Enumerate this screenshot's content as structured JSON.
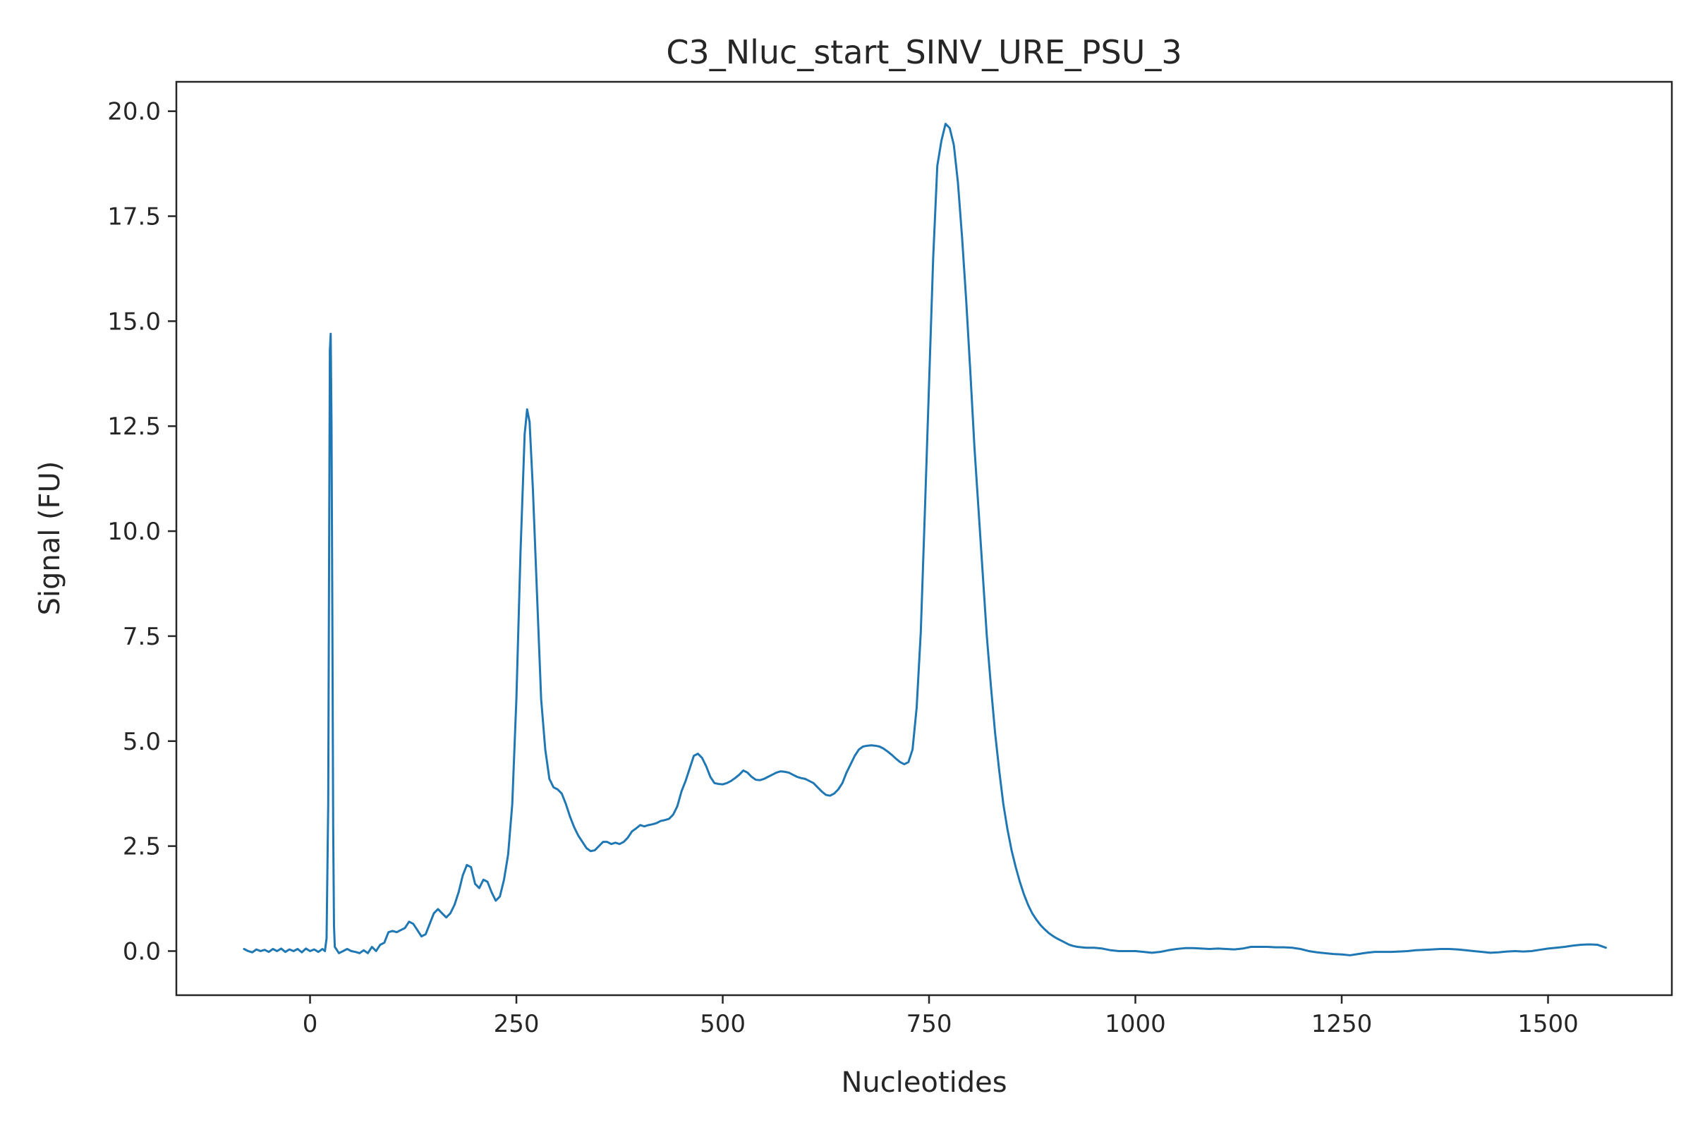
{
  "chart_data": {
    "type": "line",
    "title": "C3_Nluc_start_SINV_URE_PSU_3",
    "xlabel": "Nucleotides",
    "ylabel": "Signal (FU)",
    "xlim": [
      -162,
      1650
    ],
    "ylim": [
      -1.05,
      20.7
    ],
    "xticks": [
      0,
      250,
      500,
      750,
      1000,
      1250,
      1500
    ],
    "xtick_labels": [
      "0",
      "250",
      "500",
      "750",
      "1000",
      "1250",
      "1500"
    ],
    "yticks": [
      0,
      2.5,
      5,
      7.5,
      10,
      12.5,
      15,
      17.5,
      20
    ],
    "ytick_labels": [
      "0.0",
      "2.5",
      "5.0",
      "7.5",
      "10.0",
      "12.5",
      "15.0",
      "17.5",
      "20.0"
    ],
    "grid": false,
    "line_color": "#1f77b4",
    "series": [
      {
        "points": [
          [
            -80,
            0.05
          ],
          [
            -75,
            0.0
          ],
          [
            -70,
            -0.03
          ],
          [
            -65,
            0.04
          ],
          [
            -60,
            0.0
          ],
          [
            -55,
            0.03
          ],
          [
            -50,
            -0.02
          ],
          [
            -45,
            0.05
          ],
          [
            -40,
            0.0
          ],
          [
            -35,
            0.06
          ],
          [
            -30,
            -0.02
          ],
          [
            -25,
            0.04
          ],
          [
            -20,
            0.0
          ],
          [
            -15,
            0.05
          ],
          [
            -10,
            -0.03
          ],
          [
            -5,
            0.06
          ],
          [
            0,
            0.0
          ],
          [
            5,
            0.04
          ],
          [
            10,
            -0.02
          ],
          [
            15,
            0.05
          ],
          [
            18,
            0.0
          ],
          [
            20,
            0.3
          ],
          [
            22,
            3.5
          ],
          [
            23,
            9.0
          ],
          [
            24,
            14.3
          ],
          [
            25,
            14.7
          ],
          [
            26,
            12.5
          ],
          [
            27,
            8.0
          ],
          [
            28,
            3.0
          ],
          [
            29,
            0.6
          ],
          [
            30,
            0.1
          ],
          [
            35,
            -0.05
          ],
          [
            40,
            0.0
          ],
          [
            45,
            0.05
          ],
          [
            50,
            0.0
          ],
          [
            55,
            -0.02
          ],
          [
            60,
            -0.05
          ],
          [
            65,
            0.02
          ],
          [
            70,
            -0.05
          ],
          [
            75,
            0.1
          ],
          [
            80,
            0.0
          ],
          [
            85,
            0.15
          ],
          [
            90,
            0.2
          ],
          [
            95,
            0.45
          ],
          [
            100,
            0.48
          ],
          [
            105,
            0.45
          ],
          [
            110,
            0.5
          ],
          [
            115,
            0.55
          ],
          [
            120,
            0.7
          ],
          [
            125,
            0.65
          ],
          [
            130,
            0.5
          ],
          [
            135,
            0.35
          ],
          [
            140,
            0.4
          ],
          [
            145,
            0.65
          ],
          [
            150,
            0.9
          ],
          [
            155,
            1.0
          ],
          [
            160,
            0.9
          ],
          [
            165,
            0.8
          ],
          [
            170,
            0.9
          ],
          [
            175,
            1.1
          ],
          [
            180,
            1.4
          ],
          [
            185,
            1.8
          ],
          [
            190,
            2.05
          ],
          [
            195,
            2.0
          ],
          [
            200,
            1.6
          ],
          [
            205,
            1.5
          ],
          [
            210,
            1.7
          ],
          [
            215,
            1.65
          ],
          [
            220,
            1.4
          ],
          [
            225,
            1.2
          ],
          [
            230,
            1.3
          ],
          [
            235,
            1.7
          ],
          [
            240,
            2.3
          ],
          [
            245,
            3.5
          ],
          [
            250,
            6.0
          ],
          [
            255,
            9.5
          ],
          [
            260,
            12.3
          ],
          [
            263,
            12.9
          ],
          [
            266,
            12.6
          ],
          [
            270,
            11.0
          ],
          [
            275,
            8.5
          ],
          [
            280,
            6.0
          ],
          [
            285,
            4.8
          ],
          [
            290,
            4.1
          ],
          [
            295,
            3.9
          ],
          [
            300,
            3.85
          ],
          [
            305,
            3.75
          ],
          [
            310,
            3.5
          ],
          [
            315,
            3.2
          ],
          [
            320,
            2.95
          ],
          [
            325,
            2.75
          ],
          [
            330,
            2.6
          ],
          [
            335,
            2.45
          ],
          [
            340,
            2.38
          ],
          [
            345,
            2.4
          ],
          [
            350,
            2.5
          ],
          [
            355,
            2.6
          ],
          [
            360,
            2.6
          ],
          [
            365,
            2.55
          ],
          [
            370,
            2.58
          ],
          [
            375,
            2.55
          ],
          [
            380,
            2.6
          ],
          [
            385,
            2.7
          ],
          [
            390,
            2.85
          ],
          [
            395,
            2.92
          ],
          [
            400,
            3.0
          ],
          [
            405,
            2.97
          ],
          [
            410,
            3.0
          ],
          [
            415,
            3.02
          ],
          [
            420,
            3.05
          ],
          [
            425,
            3.1
          ],
          [
            430,
            3.12
          ],
          [
            435,
            3.15
          ],
          [
            440,
            3.25
          ],
          [
            445,
            3.45
          ],
          [
            450,
            3.8
          ],
          [
            455,
            4.05
          ],
          [
            460,
            4.35
          ],
          [
            465,
            4.65
          ],
          [
            470,
            4.7
          ],
          [
            475,
            4.6
          ],
          [
            480,
            4.4
          ],
          [
            485,
            4.15
          ],
          [
            490,
            4.0
          ],
          [
            495,
            3.98
          ],
          [
            500,
            3.97
          ],
          [
            505,
            4.0
          ],
          [
            510,
            4.05
          ],
          [
            515,
            4.12
          ],
          [
            520,
            4.2
          ],
          [
            525,
            4.3
          ],
          [
            530,
            4.25
          ],
          [
            535,
            4.15
          ],
          [
            540,
            4.08
          ],
          [
            545,
            4.07
          ],
          [
            550,
            4.1
          ],
          [
            555,
            4.15
          ],
          [
            560,
            4.2
          ],
          [
            565,
            4.25
          ],
          [
            570,
            4.28
          ],
          [
            575,
            4.27
          ],
          [
            580,
            4.25
          ],
          [
            585,
            4.2
          ],
          [
            590,
            4.15
          ],
          [
            595,
            4.12
          ],
          [
            600,
            4.1
          ],
          [
            605,
            4.05
          ],
          [
            610,
            4.0
          ],
          [
            615,
            3.9
          ],
          [
            620,
            3.8
          ],
          [
            625,
            3.72
          ],
          [
            630,
            3.7
          ],
          [
            635,
            3.75
          ],
          [
            640,
            3.85
          ],
          [
            645,
            4.0
          ],
          [
            650,
            4.25
          ],
          [
            655,
            4.45
          ],
          [
            660,
            4.65
          ],
          [
            665,
            4.8
          ],
          [
            670,
            4.87
          ],
          [
            675,
            4.89
          ],
          [
            680,
            4.9
          ],
          [
            685,
            4.89
          ],
          [
            690,
            4.87
          ],
          [
            695,
            4.82
          ],
          [
            700,
            4.75
          ],
          [
            705,
            4.67
          ],
          [
            710,
            4.58
          ],
          [
            715,
            4.5
          ],
          [
            720,
            4.45
          ],
          [
            725,
            4.5
          ],
          [
            730,
            4.8
          ],
          [
            735,
            5.8
          ],
          [
            740,
            7.6
          ],
          [
            745,
            10.5
          ],
          [
            750,
            13.5
          ],
          [
            755,
            16.5
          ],
          [
            760,
            18.7
          ],
          [
            765,
            19.3
          ],
          [
            770,
            19.7
          ],
          [
            775,
            19.6
          ],
          [
            780,
            19.2
          ],
          [
            785,
            18.3
          ],
          [
            790,
            17.0
          ],
          [
            795,
            15.5
          ],
          [
            800,
            13.8
          ],
          [
            805,
            12.0
          ],
          [
            810,
            10.5
          ],
          [
            815,
            9.0
          ],
          [
            820,
            7.5
          ],
          [
            825,
            6.3
          ],
          [
            830,
            5.2
          ],
          [
            835,
            4.3
          ],
          [
            840,
            3.5
          ],
          [
            845,
            2.9
          ],
          [
            850,
            2.4
          ],
          [
            855,
            2.0
          ],
          [
            860,
            1.65
          ],
          [
            865,
            1.35
          ],
          [
            870,
            1.1
          ],
          [
            875,
            0.9
          ],
          [
            880,
            0.75
          ],
          [
            885,
            0.62
          ],
          [
            890,
            0.52
          ],
          [
            895,
            0.43
          ],
          [
            900,
            0.36
          ],
          [
            905,
            0.3
          ],
          [
            910,
            0.25
          ],
          [
            915,
            0.2
          ],
          [
            920,
            0.15
          ],
          [
            925,
            0.12
          ],
          [
            930,
            0.1
          ],
          [
            940,
            0.08
          ],
          [
            950,
            0.08
          ],
          [
            960,
            0.06
          ],
          [
            970,
            0.02
          ],
          [
            980,
            0.0
          ],
          [
            990,
            0.0
          ],
          [
            1000,
            0.0
          ],
          [
            1010,
            -0.02
          ],
          [
            1020,
            -0.04
          ],
          [
            1030,
            -0.02
          ],
          [
            1040,
            0.02
          ],
          [
            1050,
            0.05
          ],
          [
            1060,
            0.07
          ],
          [
            1070,
            0.07
          ],
          [
            1080,
            0.06
          ],
          [
            1090,
            0.05
          ],
          [
            1100,
            0.06
          ],
          [
            1110,
            0.05
          ],
          [
            1120,
            0.04
          ],
          [
            1130,
            0.06
          ],
          [
            1140,
            0.1
          ],
          [
            1150,
            0.1
          ],
          [
            1160,
            0.1
          ],
          [
            1170,
            0.09
          ],
          [
            1180,
            0.09
          ],
          [
            1190,
            0.08
          ],
          [
            1200,
            0.05
          ],
          [
            1210,
            0.0
          ],
          [
            1220,
            -0.03
          ],
          [
            1230,
            -0.05
          ],
          [
            1240,
            -0.07
          ],
          [
            1250,
            -0.08
          ],
          [
            1260,
            -0.1
          ],
          [
            1270,
            -0.07
          ],
          [
            1280,
            -0.04
          ],
          [
            1290,
            -0.02
          ],
          [
            1300,
            -0.02
          ],
          [
            1310,
            -0.02
          ],
          [
            1320,
            -0.01
          ],
          [
            1330,
            0.0
          ],
          [
            1340,
            0.02
          ],
          [
            1350,
            0.03
          ],
          [
            1360,
            0.04
          ],
          [
            1370,
            0.05
          ],
          [
            1380,
            0.05
          ],
          [
            1390,
            0.04
          ],
          [
            1400,
            0.02
          ],
          [
            1410,
            0.0
          ],
          [
            1420,
            -0.02
          ],
          [
            1430,
            -0.04
          ],
          [
            1440,
            -0.03
          ],
          [
            1450,
            -0.01
          ],
          [
            1460,
            0.0
          ],
          [
            1470,
            -0.01
          ],
          [
            1480,
            0.0
          ],
          [
            1490,
            0.03
          ],
          [
            1500,
            0.06
          ],
          [
            1510,
            0.08
          ],
          [
            1520,
            0.1
          ],
          [
            1530,
            0.13
          ],
          [
            1540,
            0.15
          ],
          [
            1550,
            0.16
          ],
          [
            1560,
            0.15
          ],
          [
            1570,
            0.08
          ]
        ]
      }
    ]
  }
}
